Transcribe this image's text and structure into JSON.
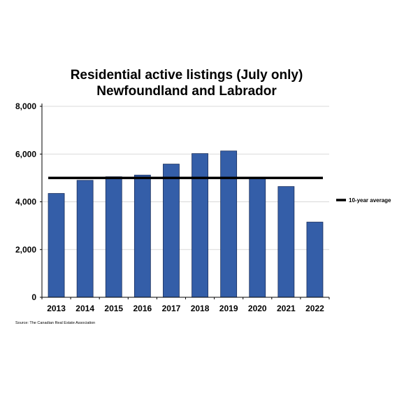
{
  "chart_data": {
    "type": "bar",
    "title": "Residential active listings (July only)",
    "subtitle": "Newfoundland and Labrador",
    "categories": [
      "2013",
      "2014",
      "2015",
      "2016",
      "2017",
      "2018",
      "2019",
      "2020",
      "2021",
      "2022"
    ],
    "series": [
      {
        "values": [
          4350,
          4900,
          5050,
          5120,
          5580,
          6020,
          6130,
          4980,
          4640,
          3150
        ]
      }
    ],
    "reference_line": {
      "name": "10-year average",
      "value": 5000
    },
    "ylim": [
      0,
      8000
    ],
    "y_ticks": [
      0,
      2000,
      4000,
      6000,
      8000
    ],
    "y_tick_labels": [
      "0",
      "2,000",
      "4,000",
      "6,000",
      "8,000"
    ],
    "xlabel": "",
    "ylabel": "",
    "grid": true,
    "legend_position": "right",
    "colors": {
      "bar": "#345ea8",
      "bar_border": "#1a2f5c",
      "average_line": "#000000",
      "grid": "#d9d9d9"
    }
  },
  "source": "Source: The Canadian Real Estate Association"
}
